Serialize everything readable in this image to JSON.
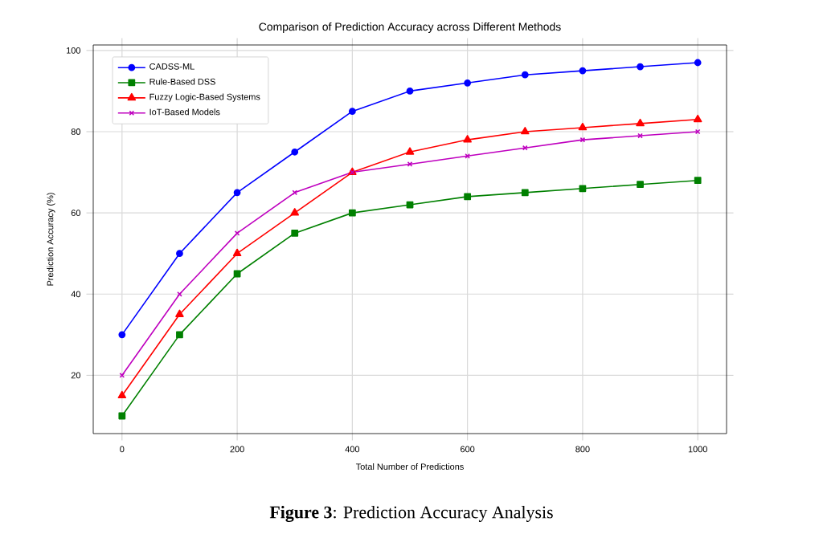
{
  "chart_data": {
    "type": "line",
    "title": "Comparison of Prediction Accuracy across Different Methods",
    "xlabel": "Total Number of Predictions",
    "ylabel": "Prediction Accuracy (%)",
    "x": [
      0,
      100,
      200,
      300,
      400,
      500,
      600,
      700,
      800,
      900,
      1000
    ],
    "series": [
      {
        "name": "CADSS-ML",
        "color": "#0000ff",
        "marker": "circle",
        "values": [
          30,
          50,
          65,
          75,
          85,
          90,
          92,
          94,
          95,
          96,
          97
        ]
      },
      {
        "name": "Rule-Based DSS",
        "color": "#008000",
        "marker": "square",
        "values": [
          10,
          30,
          45,
          55,
          60,
          62,
          64,
          65,
          66,
          67,
          68
        ]
      },
      {
        "name": "Fuzzy Logic-Based Systems",
        "color": "#ff0000",
        "marker": "triangle",
        "values": [
          15,
          35,
          50,
          60,
          70,
          75,
          78,
          80,
          81,
          82,
          83
        ]
      },
      {
        "name": "IoT-Based Models",
        "color": "#bf00bf",
        "marker": "cross",
        "values": [
          20,
          40,
          55,
          65,
          70,
          72,
          74,
          76,
          78,
          79,
          80
        ]
      }
    ],
    "xlim": [
      -50,
      1050
    ],
    "ylim": [
      5.65,
      101.35
    ],
    "xticks": [
      0,
      200,
      400,
      600,
      800,
      1000
    ],
    "yticks": [
      20,
      40,
      60,
      80,
      100
    ],
    "grid": true,
    "legend": "top left",
    "line_style": "solid",
    "annotations": [
      "**Figure 3**: Prediction Accuracy Analysis"
    ]
  }
}
